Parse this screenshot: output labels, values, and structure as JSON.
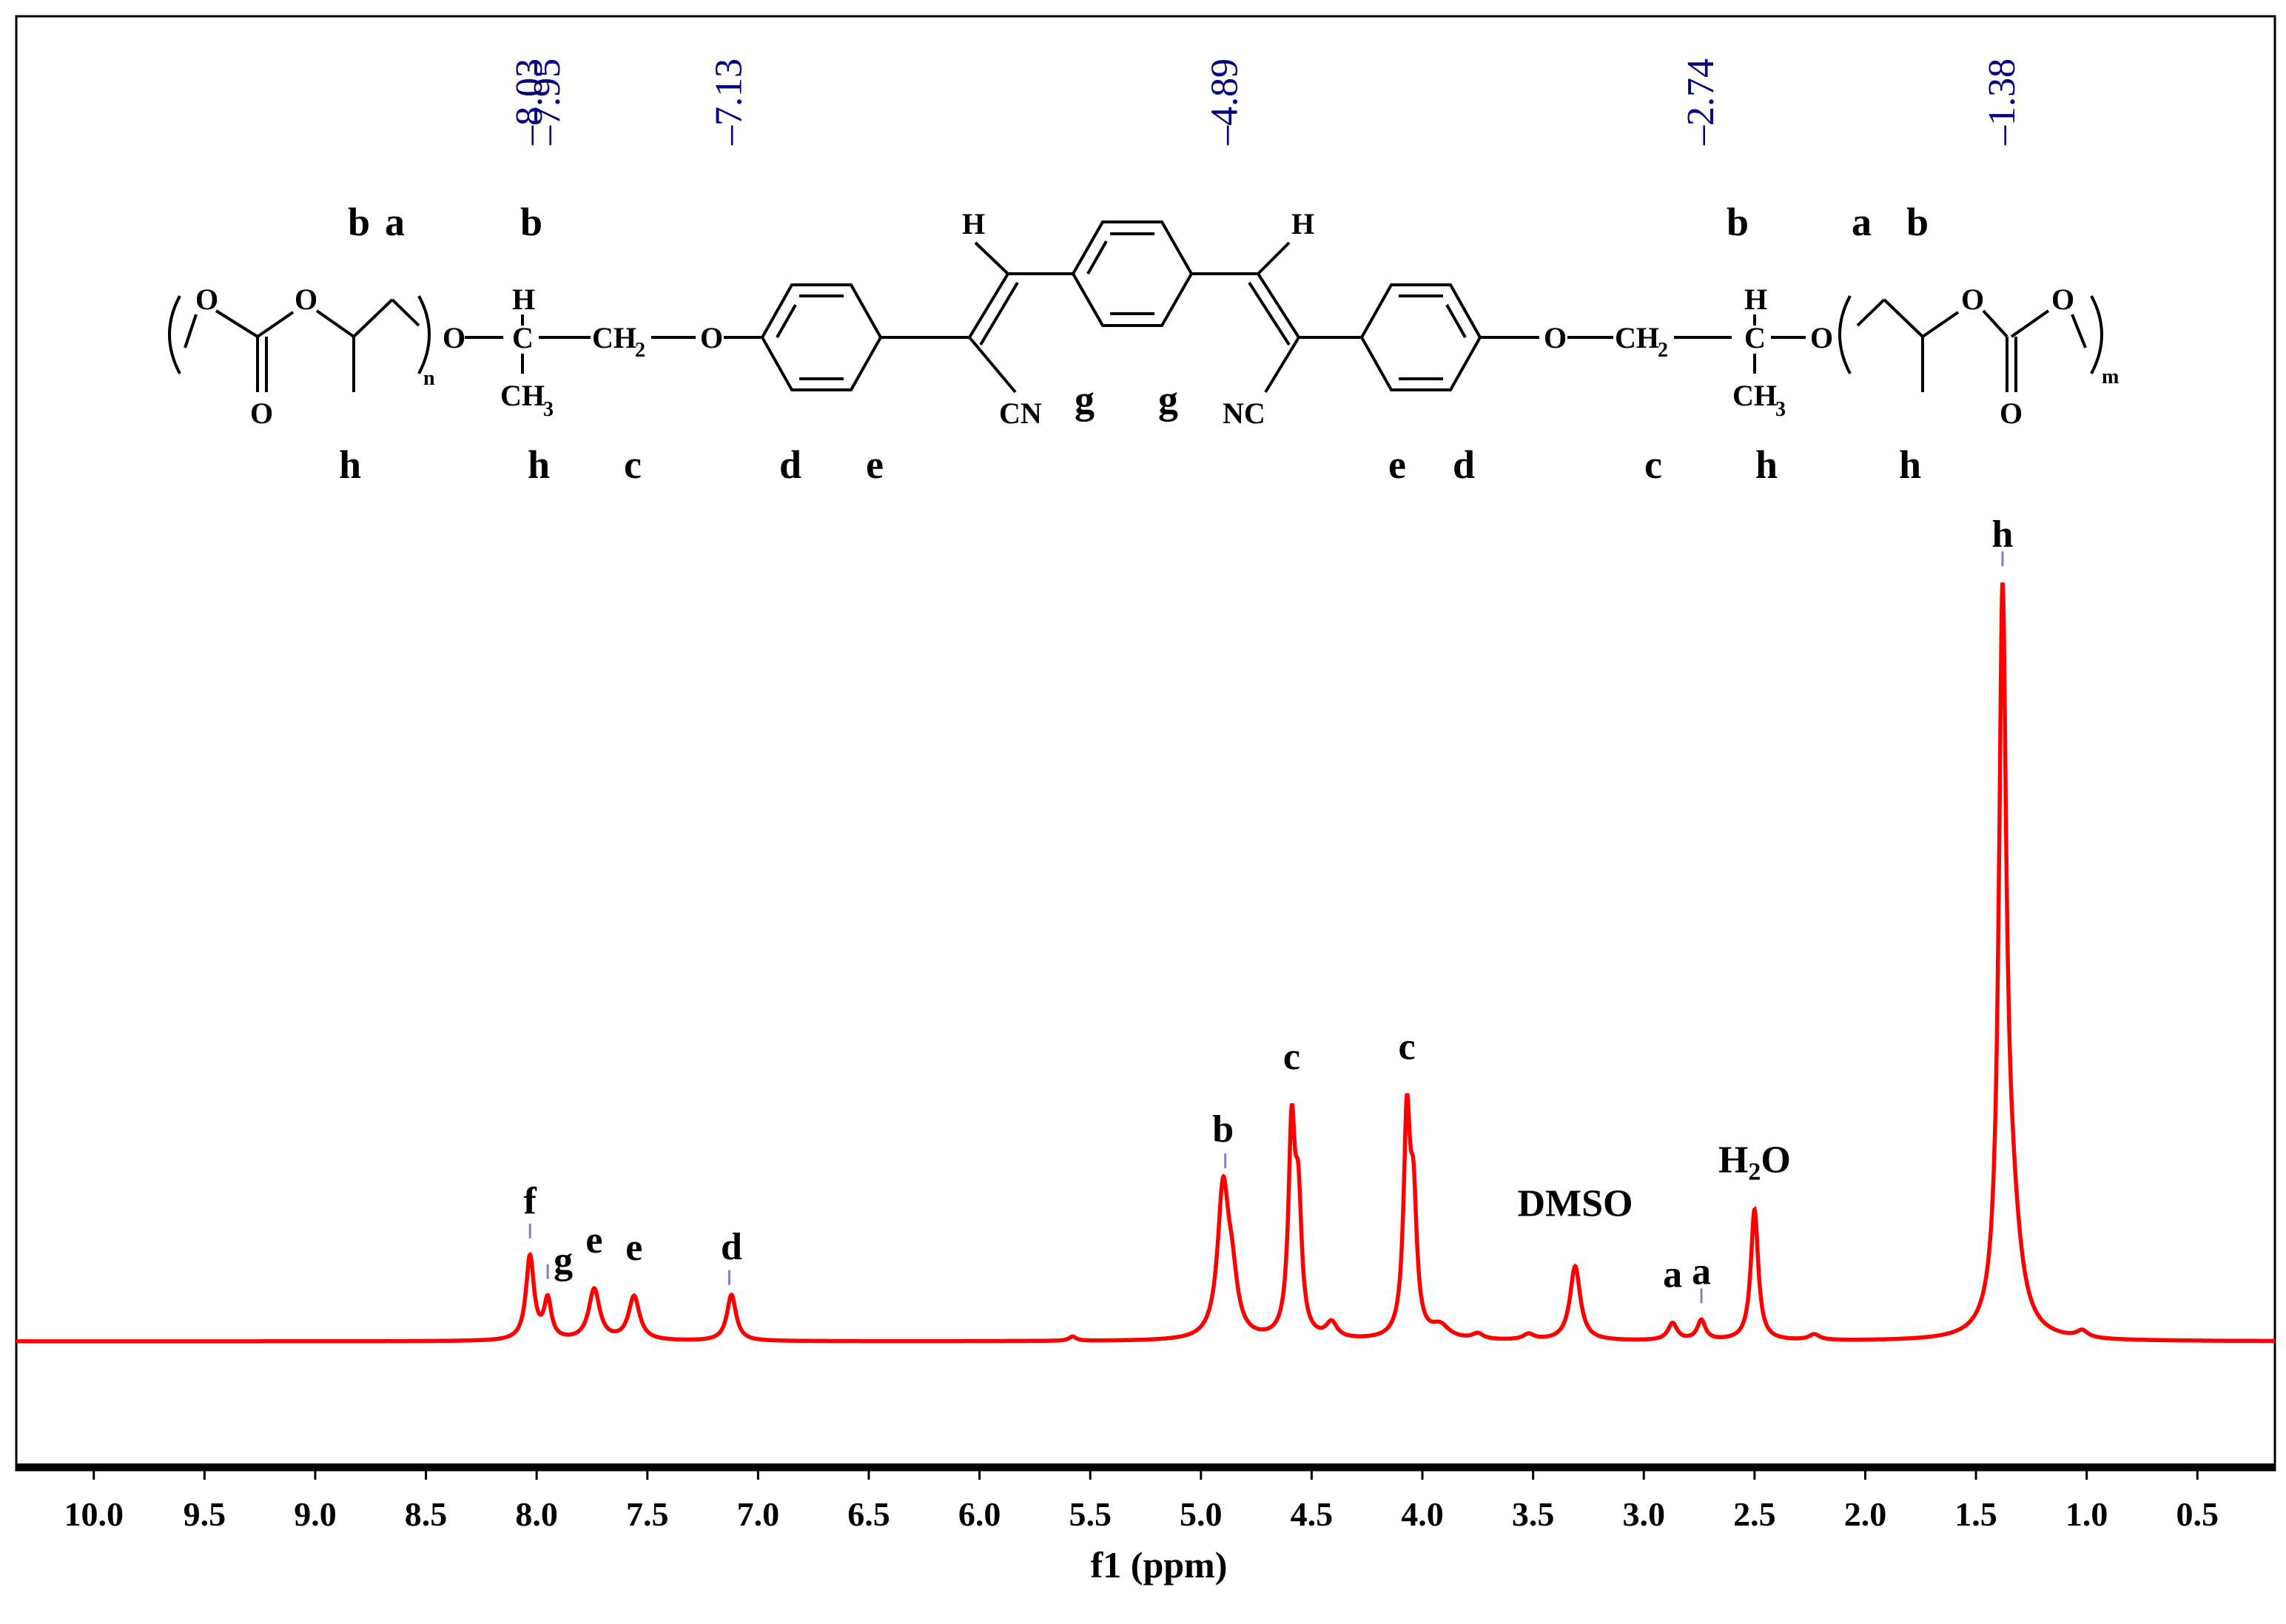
{
  "chart_data": {
    "type": "line",
    "title": "",
    "xlabel": "f1 (ppm)",
    "ylabel": "",
    "xlim": [
      10.35,
      0.15
    ],
    "ylim": [
      -0.1,
      1.05
    ],
    "x_reversed": true,
    "grid": false,
    "legend": "none",
    "x_ticks": [
      "10.0",
      "9.5",
      "9.0",
      "8.5",
      "8.0",
      "7.5",
      "7.0",
      "6.5",
      "6.0",
      "5.5",
      "5.0",
      "4.5",
      "4.0",
      "3.5",
      "3.0",
      "2.5",
      "2.0",
      "1.5",
      "1.0",
      "0.5"
    ],
    "line_color": "#ff0000",
    "shift_label_color": "#000080",
    "series": [
      {
        "peaks": [
          {
            "ppm": 8.03,
            "height": 0.118,
            "width": 0.022
          },
          {
            "ppm": 7.95,
            "height": 0.055,
            "width": 0.02
          },
          {
            "ppm": 7.74,
            "height": 0.072,
            "width": 0.03
          },
          {
            "ppm": 7.56,
            "height": 0.062,
            "width": 0.03
          },
          {
            "ppm": 7.12,
            "height": 0.065,
            "width": 0.025
          },
          {
            "ppm": 5.58,
            "height": 0.006,
            "width": 0.02
          },
          {
            "ppm": 4.9,
            "height": 0.205,
            "width": 0.03
          },
          {
            "ppm": 4.86,
            "height": 0.07,
            "width": 0.03
          },
          {
            "ppm": 4.59,
            "height": 0.285,
            "width": 0.018
          },
          {
            "ppm": 4.56,
            "height": 0.17,
            "width": 0.018
          },
          {
            "ppm": 4.41,
            "height": 0.022,
            "width": 0.03
          },
          {
            "ppm": 4.07,
            "height": 0.3,
            "width": 0.018
          },
          {
            "ppm": 4.04,
            "height": 0.17,
            "width": 0.018
          },
          {
            "ppm": 3.92,
            "height": 0.018,
            "width": 0.05
          },
          {
            "ppm": 3.75,
            "height": 0.008,
            "width": 0.03
          },
          {
            "ppm": 3.52,
            "height": 0.008,
            "width": 0.03
          },
          {
            "ppm": 3.31,
            "height": 0.105,
            "width": 0.028
          },
          {
            "ppm": 2.87,
            "height": 0.024,
            "width": 0.025
          },
          {
            "ppm": 2.74,
            "height": 0.028,
            "width": 0.022
          },
          {
            "ppm": 2.5,
            "height": 0.185,
            "width": 0.02
          },
          {
            "ppm": 2.23,
            "height": 0.008,
            "width": 0.03
          },
          {
            "ppm": 1.38,
            "height": 0.98,
            "width": 0.02
          },
          {
            "ppm": 1.34,
            "height": 0.15,
            "width": 0.05
          },
          {
            "ppm": 1.02,
            "height": 0.01,
            "width": 0.03
          }
        ]
      }
    ],
    "shift_labels": [
      {
        "ppm": 8.03,
        "text": "8.03"
      },
      {
        "ppm": 7.95,
        "text": "7.95"
      },
      {
        "ppm": 7.13,
        "text": "7.13"
      },
      {
        "ppm": 4.89,
        "text": "4.89"
      },
      {
        "ppm": 2.74,
        "text": "2.74"
      },
      {
        "ppm": 1.38,
        "text": "1.38"
      }
    ],
    "peak_annotations": [
      {
        "ppm": 8.03,
        "text": "f"
      },
      {
        "ppm": 7.94,
        "text": "g"
      },
      {
        "ppm": 7.74,
        "text": "e"
      },
      {
        "ppm": 7.56,
        "text": "e"
      },
      {
        "ppm": 7.12,
        "text": "d"
      },
      {
        "ppm": 4.9,
        "text": "b"
      },
      {
        "ppm": 4.59,
        "text": "c"
      },
      {
        "ppm": 4.07,
        "text": "c"
      },
      {
        "ppm": 3.31,
        "text": "DMSO"
      },
      {
        "ppm": 2.87,
        "text": "a"
      },
      {
        "ppm": 2.74,
        "text": "a"
      },
      {
        "ppm": 2.5,
        "text": "H2O"
      },
      {
        "ppm": 1.38,
        "text": "h"
      }
    ]
  },
  "structure": {
    "letters_top": [
      "b",
      "a",
      "b",
      "b",
      "a",
      "b"
    ],
    "letters_bottom": [
      "h",
      "h",
      "c",
      "d",
      "e",
      "e",
      "d",
      "c",
      "h",
      "h"
    ],
    "letters_mid": [
      "g",
      "g"
    ],
    "atoms": {
      "O": "O",
      "H": "H",
      "C": "C",
      "CH2": "CH",
      "CH3": "CH",
      "CN": "CN",
      "NC": "NC",
      "sub2": "2",
      "sub3": "3",
      "n": "n",
      "m": "m"
    }
  }
}
